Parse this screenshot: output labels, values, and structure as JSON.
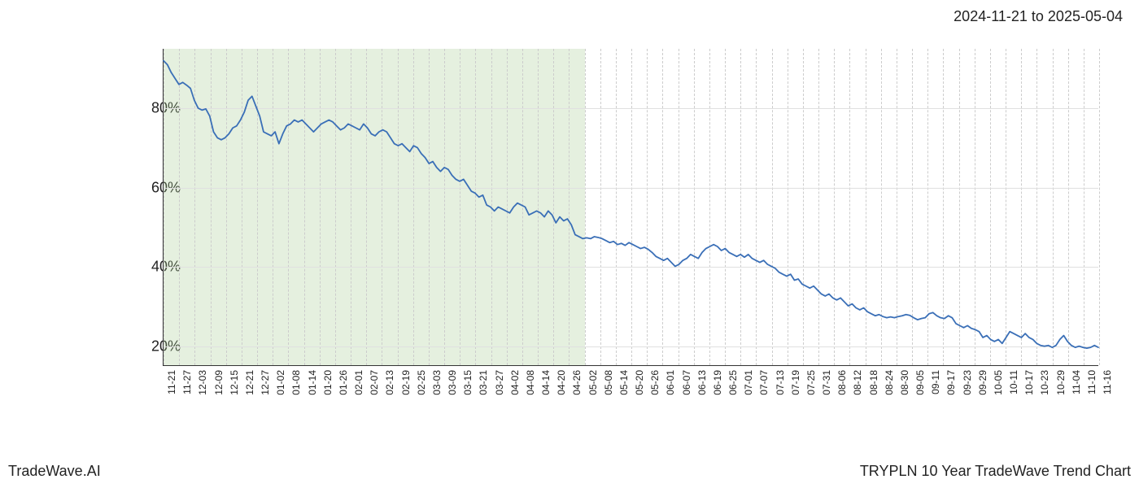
{
  "header": {
    "date_range": "2024-11-21 to 2025-05-04"
  },
  "footer": {
    "left_text": "TradeWave.AI",
    "right_text": "TRYPLN 10 Year TradeWave Trend Chart"
  },
  "chart": {
    "type": "line",
    "background_color": "#ffffff",
    "grid_color_minor": "#cccccc",
    "grid_color_major": "#e0e0e0",
    "axis_color": "#333333",
    "line_color": "#3a6fb7",
    "line_width": 1.8,
    "highlight_fill": "rgba(160,200,140,0.28)",
    "highlight_range_indices": [
      0,
      27
    ],
    "ylim": [
      15,
      95
    ],
    "y_ticks": [
      20,
      40,
      60,
      80
    ],
    "y_tick_labels": [
      "20%",
      "40%",
      "60%",
      "80%"
    ],
    "label_fontsize": 18,
    "xtick_fontsize": 12,
    "x_labels": [
      "11-21",
      "11-27",
      "12-03",
      "12-09",
      "12-15",
      "12-21",
      "12-27",
      "01-02",
      "01-08",
      "01-14",
      "01-20",
      "01-26",
      "02-01",
      "02-07",
      "02-13",
      "02-19",
      "02-25",
      "03-03",
      "03-09",
      "03-15",
      "03-21",
      "03-27",
      "04-02",
      "04-08",
      "04-14",
      "04-20",
      "04-26",
      "05-02",
      "05-08",
      "05-14",
      "05-20",
      "05-26",
      "06-01",
      "06-07",
      "06-13",
      "06-19",
      "06-25",
      "07-01",
      "07-07",
      "07-13",
      "07-19",
      "07-25",
      "07-31",
      "08-06",
      "08-12",
      "08-18",
      "08-24",
      "08-30",
      "09-05",
      "09-11",
      "09-17",
      "09-23",
      "09-29",
      "10-05",
      "10-11",
      "10-17",
      "10-23",
      "10-29",
      "11-04",
      "11-10",
      "11-16"
    ],
    "series": [
      92.0,
      91.0,
      89.0,
      87.5,
      86.0,
      86.5,
      85.8,
      85.0,
      82.0,
      80.0,
      79.5,
      79.8,
      78.0,
      74.0,
      72.5,
      72.0,
      72.5,
      73.5,
      75.0,
      75.5,
      77.0,
      79.0,
      82.0,
      83.0,
      80.5,
      78.0,
      74.0,
      73.5,
      73.0,
      74.0,
      71.0,
      73.5,
      75.5,
      76.0,
      77.0,
      76.5,
      77.0,
      76.0,
      75.0,
      74.0,
      75.0,
      76.0,
      76.5,
      77.0,
      76.5,
      75.5,
      74.5,
      75.0,
      76.0,
      75.5,
      75.0,
      74.5,
      76.0,
      75.0,
      73.5,
      73.0,
      74.0,
      74.5,
      74.0,
      72.5,
      71.0,
      70.5,
      71.0,
      70.0,
      69.0,
      70.5,
      70.0,
      68.5,
      67.5,
      66.0,
      66.5,
      65.0,
      64.0,
      65.0,
      64.5,
      63.0,
      62.0,
      61.5,
      62.0,
      60.5,
      59.0,
      58.5,
      57.5,
      58.0,
      55.5,
      55.0,
      54.0,
      55.0,
      54.5,
      54.0,
      53.5,
      55.0,
      56.0,
      55.5,
      55.0,
      53.0,
      53.5,
      54.0,
      53.5,
      52.5,
      54.0,
      53.0,
      51.0,
      52.5,
      51.5,
      52.0,
      50.5,
      48.0,
      47.5,
      47.0,
      47.2,
      47.0,
      47.5,
      47.3,
      47.0,
      46.5,
      46.0,
      46.3,
      45.5,
      45.8,
      45.3,
      46.0,
      45.5,
      45.0,
      44.5,
      44.8,
      44.3,
      43.5,
      42.5,
      42.0,
      41.5,
      42.0,
      41.0,
      40.0,
      40.5,
      41.5,
      42.0,
      43.0,
      42.5,
      42.0,
      43.5,
      44.5,
      45.0,
      45.5,
      45.0,
      44.0,
      44.5,
      43.5,
      43.0,
      42.5,
      43.0,
      42.3,
      43.0,
      42.0,
      41.5,
      41.0,
      41.5,
      40.5,
      40.0,
      39.5,
      38.5,
      38.0,
      37.5,
      38.0,
      36.5,
      36.8,
      35.5,
      35.0,
      34.5,
      35.0,
      34.0,
      33.0,
      32.5,
      33.0,
      32.0,
      31.5,
      32.0,
      31.0,
      30.0,
      30.5,
      29.5,
      29.0,
      29.5,
      28.5,
      28.0,
      27.5,
      27.8,
      27.3,
      27.0,
      27.2,
      27.0,
      27.3,
      27.5,
      27.8,
      27.6,
      27.0,
      26.5,
      26.8,
      27.0,
      28.0,
      28.3,
      27.5,
      27.0,
      26.8,
      27.5,
      27.0,
      25.5,
      25.0,
      24.5,
      25.0,
      24.3,
      24.0,
      23.5,
      22.0,
      22.5,
      21.5,
      21.0,
      21.5,
      20.5,
      22.0,
      23.5,
      23.0,
      22.5,
      22.0,
      23.0,
      22.0,
      21.5,
      20.5,
      20.0,
      19.8,
      20.0,
      19.5,
      20.0,
      21.5,
      22.5,
      21.0,
      20.0,
      19.5,
      19.8,
      19.5,
      19.3,
      19.5,
      20.0,
      19.5
    ]
  }
}
